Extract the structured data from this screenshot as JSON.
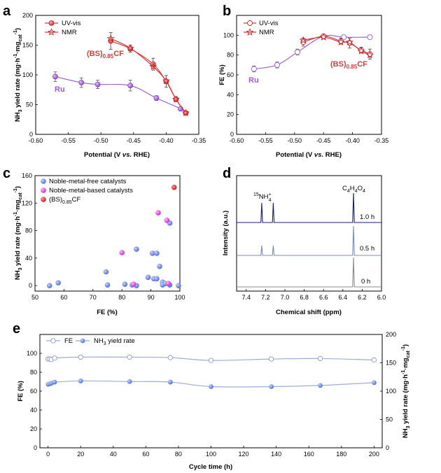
{
  "colors": {
    "bs_red": "#d63a3a",
    "bs_red_dark": "#c0282b",
    "ru_purple": "#9b59d0",
    "blue": "#5b7be0",
    "magenta": "#d83ad8",
    "red_point": "#d81e1e",
    "nmr_dark": "#1a1e6e",
    "nmr_gray": "#8a8a8a",
    "fe_line": "#9aaed8"
  },
  "chart_data": [
    {
      "panel": "a",
      "type": "line",
      "xlabel": "Potential (V vs. RHE)",
      "ylabel": "NH3 yield rate (mg·h⁻¹·mgcat⁻¹)",
      "xlim": [
        -0.6,
        -0.35
      ],
      "ylim": [
        0,
        200
      ],
      "xticks": [
        "-0.60",
        "-0.55",
        "-0.50",
        "-0.45",
        "-0.40",
        "-0.35"
      ],
      "yticks": [
        "0",
        "50",
        "100",
        "150",
        "200"
      ],
      "legend": [
        "UV-vis",
        "NMR"
      ],
      "annotations": [
        "Ru",
        "(BS)0.85CF"
      ],
      "series": [
        {
          "name": "Ru",
          "x": [
            -0.57,
            -0.53,
            -0.505,
            -0.455,
            -0.415,
            -0.378,
            -0.37
          ],
          "y": [
            97,
            87,
            84,
            82,
            61,
            43,
            36
          ],
          "err": [
            8,
            8,
            7,
            9,
            4,
            3,
            2
          ]
        },
        {
          "name": "(BS)0.85CF UV-vis",
          "x": [
            -0.485,
            -0.455,
            -0.42,
            -0.4,
            -0.385,
            -0.37
          ],
          "y": [
            157,
            144,
            118,
            89,
            59,
            36
          ],
          "err": [
            14,
            6,
            10,
            10,
            4,
            2
          ]
        },
        {
          "name": "(BS)0.85CF NMR",
          "x": [
            -0.485,
            -0.455,
            -0.42,
            -0.4,
            -0.385,
            -0.37
          ],
          "y": [
            161,
            145,
            114,
            90,
            59,
            36
          ],
          "err": [
            14,
            6,
            10,
            10,
            4,
            2
          ]
        }
      ]
    },
    {
      "panel": "b",
      "type": "line",
      "xlabel": "Potential (V vs. RHE)",
      "ylabel": "FE (%)",
      "xlim": [
        -0.6,
        -0.35
      ],
      "ylim": [
        0,
        120
      ],
      "xticks": [
        "-0.60",
        "-0.55",
        "-0.50",
        "-0.45",
        "-0.40",
        "-0.35"
      ],
      "yticks": [
        "0",
        "20",
        "40",
        "60",
        "80",
        "100"
      ],
      "legend": [
        "UV-vis",
        "NMR"
      ],
      "annotations": [
        "Ru",
        "(BS)0.85CF"
      ],
      "series": [
        {
          "name": "Ru",
          "x": [
            -0.57,
            -0.53,
            -0.495,
            -0.45,
            -0.415,
            -0.37
          ],
          "y": [
            66,
            70,
            83,
            99,
            98,
            98
          ],
          "err": [
            3,
            3,
            3,
            2,
            2,
            2
          ]
        },
        {
          "name": "(BS)0.85CF UV-vis",
          "x": [
            -0.485,
            -0.45,
            -0.42,
            -0.405,
            -0.385,
            -0.37
          ],
          "y": [
            93,
            99,
            94,
            92,
            85,
            81
          ],
          "err": [
            4,
            2,
            3,
            5,
            3,
            5
          ]
        },
        {
          "name": "(BS)0.85CF NMR",
          "x": [
            -0.485,
            -0.45,
            -0.42,
            -0.405,
            -0.385,
            -0.37
          ],
          "y": [
            95,
            98,
            93,
            93,
            84,
            80
          ],
          "err": [
            4,
            2,
            3,
            5,
            3,
            5
          ]
        }
      ]
    },
    {
      "panel": "c",
      "type": "scatter",
      "xlabel": "FE (%)",
      "ylabel": "NH3 yield rate (mg·h⁻¹·mgcat⁻¹)",
      "xlim": [
        50,
        100
      ],
      "ylim": [
        -8,
        160
      ],
      "xticks": [
        "50",
        "60",
        "70",
        "80",
        "90",
        "100"
      ],
      "yticks": [
        "0",
        "40",
        "80",
        "120",
        "160"
      ],
      "legend": [
        "Noble-metal-free catalysts",
        "Noble-metal-based catalysts",
        "(BS)0.85CF"
      ],
      "series": [
        {
          "name": "Noble-metal-free catalysts",
          "points": [
            [
              55,
              0
            ],
            [
              58,
              4
            ],
            [
              74.5,
              20
            ],
            [
              75,
              1
            ],
            [
              81,
              2
            ],
            [
              83.5,
              1
            ],
            [
              85,
              0
            ],
            [
              85,
              53
            ],
            [
              89,
              12
            ],
            [
              90.5,
              47
            ],
            [
              91,
              10
            ],
            [
              92,
              10
            ],
            [
              92,
              47
            ],
            [
              93,
              28
            ],
            [
              94,
              5
            ],
            [
              94,
              1
            ],
            [
              95,
              3
            ],
            [
              96.5,
              91
            ],
            [
              96.5,
              1
            ],
            [
              99.5,
              0
            ]
          ]
        },
        {
          "name": "Noble-metal-based catalysts",
          "points": [
            [
              80,
              48
            ],
            [
              84,
              2
            ],
            [
              92.5,
              106
            ],
            [
              95.5,
              95
            ],
            [
              96,
              3
            ]
          ]
        },
        {
          "name": "(BS)0.85CF",
          "points": [
            [
              98,
              143
            ]
          ]
        }
      ]
    },
    {
      "panel": "d",
      "type": "line",
      "xlabel": "Chemical shift (ppm)",
      "ylabel": "Intensity (a.u.)",
      "xlim": [
        7.5,
        6.0
      ],
      "xticks": [
        "7.4",
        "7.2",
        "7.0",
        "6.8",
        "6.6",
        "6.4",
        "6.2",
        "6.0"
      ],
      "peak_labels": [
        "15NH4+",
        "C4H4O4"
      ],
      "series": [
        {
          "name": "1.0 h",
          "peaks": [
            [
              7.24,
              1.0
            ],
            [
              7.12,
              1.0
            ],
            [
              6.29,
              1.5
            ]
          ]
        },
        {
          "name": "0.5 h",
          "peaks": [
            [
              7.24,
              0.5
            ],
            [
              7.12,
              0.5
            ],
            [
              6.29,
              1.5
            ]
          ]
        },
        {
          "name": "0 h",
          "peaks": [
            [
              6.29,
              1.5
            ]
          ]
        }
      ]
    },
    {
      "panel": "e",
      "type": "line",
      "xlabel": "Cycle time (h)",
      "ylabel_left": "FE (%)",
      "ylabel_right": "NH3 yield rate (mg·h⁻¹·mgcat⁻¹)",
      "xlim": [
        -5,
        205
      ],
      "ylim_left": [
        0,
        120
      ],
      "ylim_right": [
        0,
        200
      ],
      "xticks": [
        "0",
        "20",
        "40",
        "60",
        "80",
        "100",
        "120",
        "140",
        "160",
        "180",
        "200"
      ],
      "yticks_left": [
        "0",
        "20",
        "40",
        "60",
        "80",
        "100"
      ],
      "yticks_right": [
        "0",
        "50",
        "100",
        "150",
        "200"
      ],
      "legend": [
        "FE",
        "NH3 yield rate"
      ],
      "series": [
        {
          "name": "FE",
          "axis": "left",
          "x": [
            0,
            1,
            2,
            4,
            20,
            50,
            75,
            100,
            137,
            167,
            200
          ],
          "y": [
            94,
            94,
            93.5,
            95,
            96,
            96,
            95.5,
            92.5,
            94,
            94.5,
            93
          ]
        },
        {
          "name": "NH3 yield rate",
          "axis": "right",
          "x": [
            0,
            1,
            2,
            4,
            20,
            50,
            75,
            100,
            137,
            167,
            200
          ],
          "y": [
            112,
            113,
            114,
            116,
            118,
            117,
            116,
            108,
            108,
            110,
            115
          ]
        }
      ]
    }
  ],
  "labels": {
    "panel_a": "a",
    "panel_b": "b",
    "panel_c": "c",
    "panel_d": "d",
    "panel_e": "e",
    "uv_vis": "UV-vis",
    "nmr": "NMR",
    "ru": "Ru",
    "bs_prefix": "(BS)",
    "bs_sub": "0.85",
    "bs_suffix": "CF",
    "potential": "Potential (V ",
    "vs": "vs.",
    "rhe": " RHE)",
    "fe_pct": "FE (%)",
    "nh3_main": "NH",
    "nh3_sub": "3",
    "yield_text": " yield rate (mg·h",
    "minus_one": "-1",
    "mg_text": "·mg",
    "cat": "cat",
    "leg_free": "Noble-metal-free catalysts",
    "leg_based": "Noble-metal-based catalysts",
    "chem_shift": "Chemical shift (ppm)",
    "intensity": "Intensity (a.u.)",
    "nh4_sup": "15",
    "nh4_main": "NH",
    "nh4_sub": "4",
    "nh4_plus": "+",
    "c4": "C",
    "c4h": "4",
    "h": "H",
    "o": "O",
    "t10": "1.0 h",
    "t05": "0.5 h",
    "t00": "0 h",
    "cycle": "Cycle time (h)",
    "fe": "FE"
  }
}
